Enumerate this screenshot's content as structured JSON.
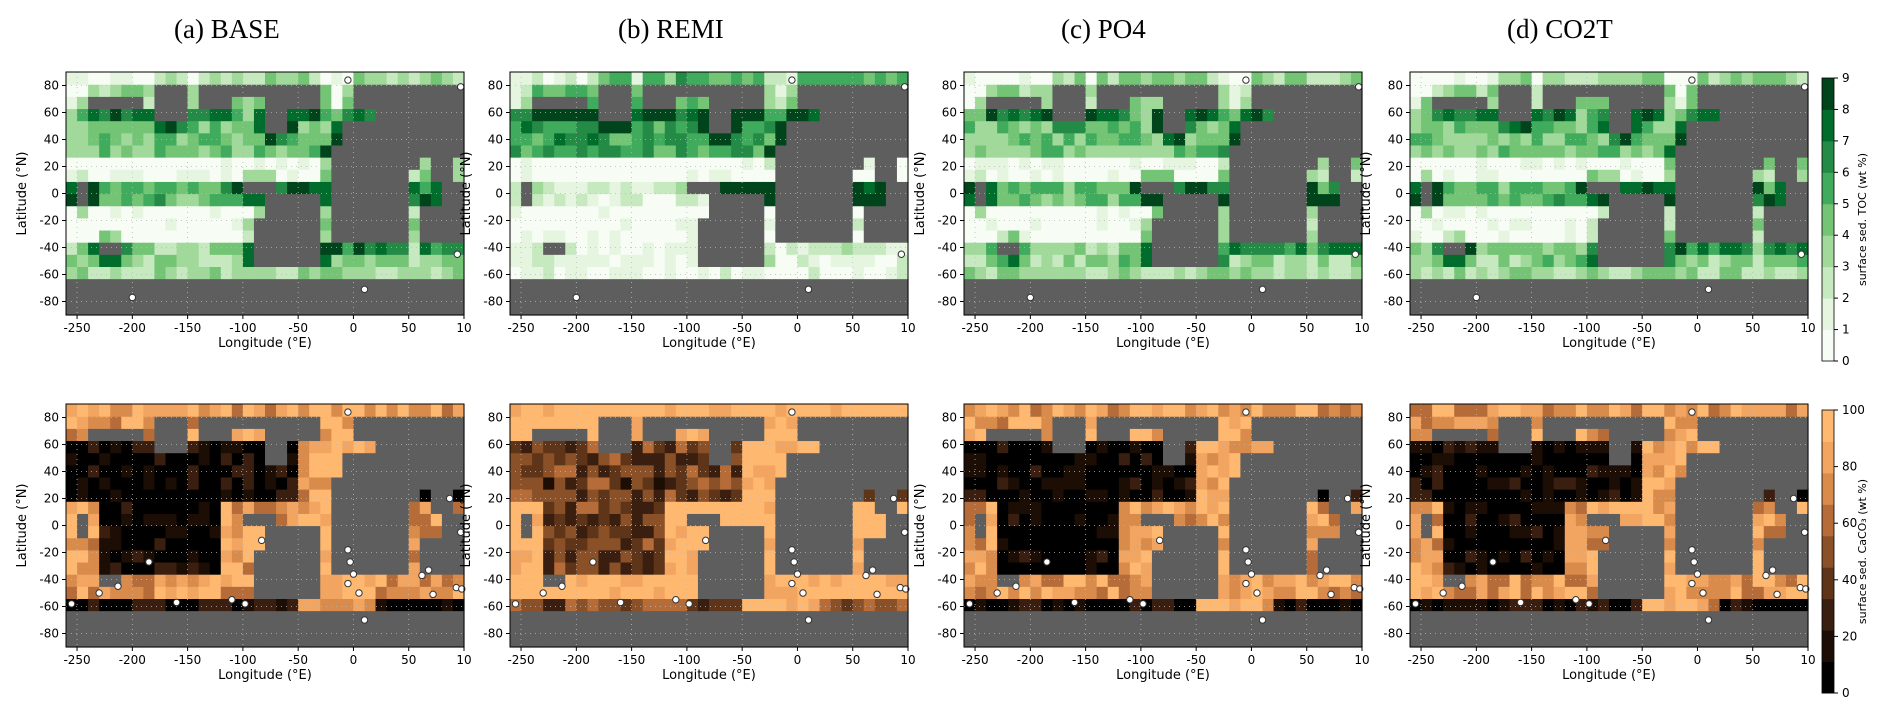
{
  "panel_titles": [
    "(a) BASE",
    "(b) REMI",
    "(c) PO4",
    "(d) CO2T"
  ],
  "axes": {
    "xlabel": "Longitude (°E)",
    "ylabel": "Latitude (°N)",
    "xticks": [
      "-250",
      "-200",
      "-150",
      "-100",
      "-50",
      "0",
      "50",
      "10"
    ],
    "yticks": [
      "80",
      "60",
      "40",
      "20",
      "0",
      "-20",
      "-40",
      "-60",
      "-80"
    ]
  },
  "colorbars": {
    "toc": {
      "label": "surface sed. TOC (wt %)",
      "ticks": [
        "9",
        "8",
        "7",
        "6",
        "5",
        "4",
        "3",
        "2",
        "1",
        "0"
      ],
      "colors": [
        "#f7fcf5",
        "#e5f5e0",
        "#c7e9c0",
        "#a1d99b",
        "#74c476",
        "#41ab5d",
        "#238b45",
        "#006d2c",
        "#00441b"
      ]
    },
    "caco3": {
      "label": "surface sed. CaCO₃ (wt %)",
      "ticks": [
        "100",
        "80",
        "60",
        "40",
        "20",
        "0"
      ],
      "colors": [
        "#000000",
        "#1c0d05",
        "#3a1f10",
        "#5e3519",
        "#8a5028",
        "#b56c38",
        "#d98b4c",
        "#f2a561",
        "#ffb870"
      ]
    }
  },
  "colors": {
    "land": "#5e5e5e"
  },
  "chart_data": [
    {
      "type": "heatmap",
      "panel": "(a) BASE",
      "variable": "surface sed. TOC (wt %)",
      "xlim": [
        -260,
        100
      ],
      "ylim": [
        -90,
        90
      ],
      "scale": [
        0,
        9
      ]
    },
    {
      "type": "heatmap",
      "panel": "(b) REMI",
      "variable": "surface sed. TOC (wt %)",
      "xlim": [
        -260,
        100
      ],
      "ylim": [
        -90,
        90
      ],
      "scale": [
        0,
        9
      ]
    },
    {
      "type": "heatmap",
      "panel": "(c) PO4",
      "variable": "surface sed. TOC (wt %)",
      "xlim": [
        -260,
        100
      ],
      "ylim": [
        -90,
        90
      ],
      "scale": [
        0,
        9
      ]
    },
    {
      "type": "heatmap",
      "panel": "(d) CO2T",
      "variable": "surface sed. TOC (wt %)",
      "xlim": [
        -260,
        100
      ],
      "ylim": [
        -90,
        90
      ],
      "scale": [
        0,
        9
      ]
    },
    {
      "type": "heatmap",
      "panel": "(a) BASE",
      "variable": "surface sed. CaCO₃ (wt %)",
      "xlim": [
        -260,
        100
      ],
      "ylim": [
        -90,
        90
      ],
      "scale": [
        0,
        100
      ]
    },
    {
      "type": "heatmap",
      "panel": "(b) REMI",
      "variable": "surface sed. CaCO₃ (wt %)",
      "xlim": [
        -260,
        100
      ],
      "ylim": [
        -90,
        90
      ],
      "scale": [
        0,
        100
      ]
    },
    {
      "type": "heatmap",
      "panel": "(c) PO4",
      "variable": "surface sed. CaCO₃ (wt %)",
      "xlim": [
        -260,
        100
      ],
      "ylim": [
        -90,
        90
      ],
      "scale": [
        0,
        100
      ]
    },
    {
      "type": "heatmap",
      "panel": "(d) CO2T",
      "variable": "surface sed. CaCO₃ (wt %)",
      "xlim": [
        -260,
        100
      ],
      "ylim": [
        -90,
        90
      ],
      "scale": [
        0,
        100
      ]
    }
  ],
  "sites": {
    "toc": [
      [
        -5,
        84
      ],
      [
        97,
        79
      ],
      [
        94,
        -45
      ],
      [
        10,
        -71
      ],
      [
        -200,
        -77
      ]
    ],
    "caco3": [
      [
        -5,
        84
      ],
      [
        -213,
        -45
      ],
      [
        -230,
        -50
      ],
      [
        -255,
        -58
      ],
      [
        -160,
        -57
      ],
      [
        -185,
        -27
      ],
      [
        -110,
        -55
      ],
      [
        -98,
        -58
      ],
      [
        -83,
        -11
      ],
      [
        -5,
        -18
      ],
      [
        0,
        -36
      ],
      [
        5,
        -50
      ],
      [
        -5,
        -43
      ],
      [
        10,
        -70
      ],
      [
        62,
        -37
      ],
      [
        68,
        -33
      ],
      [
        72,
        -51
      ],
      [
        87,
        20
      ],
      [
        97,
        -5
      ],
      [
        93,
        -46
      ],
      [
        98,
        -47
      ],
      [
        -3,
        -27
      ]
    ]
  }
}
